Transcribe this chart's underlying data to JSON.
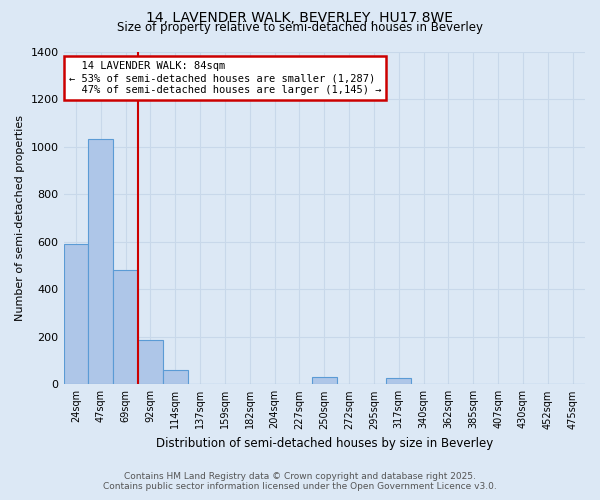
{
  "title_line1": "14, LAVENDER WALK, BEVERLEY, HU17 8WE",
  "title_line2": "Size of property relative to semi-detached houses in Beverley",
  "xlabel": "Distribution of semi-detached houses by size in Beverley",
  "ylabel": "Number of semi-detached properties",
  "property_label": "14 LAVENDER WALK: 84sqm",
  "pct_smaller": 53,
  "pct_larger": 47,
  "n_smaller": 1287,
  "n_larger": 1145,
  "bin_labels": [
    "24sqm",
    "47sqm",
    "69sqm",
    "92sqm",
    "114sqm",
    "137sqm",
    "159sqm",
    "182sqm",
    "204sqm",
    "227sqm",
    "250sqm",
    "272sqm",
    "295sqm",
    "317sqm",
    "340sqm",
    "362sqm",
    "385sqm",
    "407sqm",
    "430sqm",
    "452sqm",
    "475sqm"
  ],
  "bin_values": [
    590,
    1030,
    480,
    185,
    60,
    0,
    0,
    0,
    0,
    0,
    30,
    0,
    0,
    25,
    0,
    0,
    0,
    0,
    0,
    0,
    0
  ],
  "bar_color": "#aec6e8",
  "bar_edge_color": "#5b9bd5",
  "vline_color": "#cc0000",
  "annotation_box_color": "#cc0000",
  "background_color": "#dce8f5",
  "grid_color": "#c8d8ea",
  "ylim": [
    0,
    1400
  ],
  "yticks": [
    0,
    200,
    400,
    600,
    800,
    1000,
    1200,
    1400
  ],
  "footer_line1": "Contains HM Land Registry data © Crown copyright and database right 2025.",
  "footer_line2": "Contains public sector information licensed under the Open Government Licence v3.0."
}
